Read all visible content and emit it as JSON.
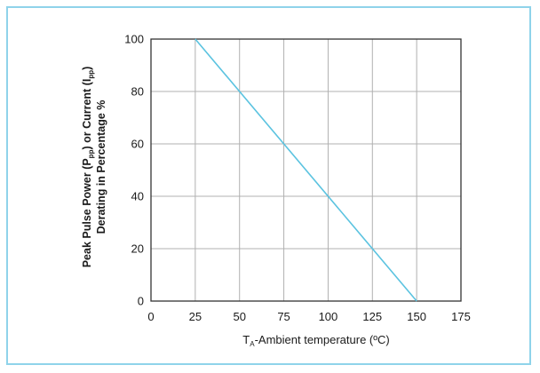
{
  "chart_data": {
    "type": "line",
    "title": "",
    "xlabel": {
      "prefix": "T",
      "subscript": "A",
      "suffix": "-Ambient temperature (ºC)"
    },
    "ylabel": {
      "line1_parts": [
        "Peak Pulse Power (P",
        "pp",
        ") or Current (I",
        "pp",
        ")"
      ],
      "line2": "Derating in Percentage %"
    },
    "x_ticks": [
      0,
      25,
      50,
      75,
      100,
      125,
      150,
      175
    ],
    "y_ticks": [
      0,
      20,
      40,
      60,
      80,
      100
    ],
    "xlim": [
      0,
      175
    ],
    "ylim": [
      0,
      100
    ],
    "grid": true,
    "series": [
      {
        "x": [
          25,
          150
        ],
        "y": [
          100,
          0
        ]
      }
    ],
    "colors": {
      "line": "#5bc3e0",
      "grid": "#b0b0b0",
      "axis": "#333333",
      "frame": "#8fd3ea"
    }
  }
}
